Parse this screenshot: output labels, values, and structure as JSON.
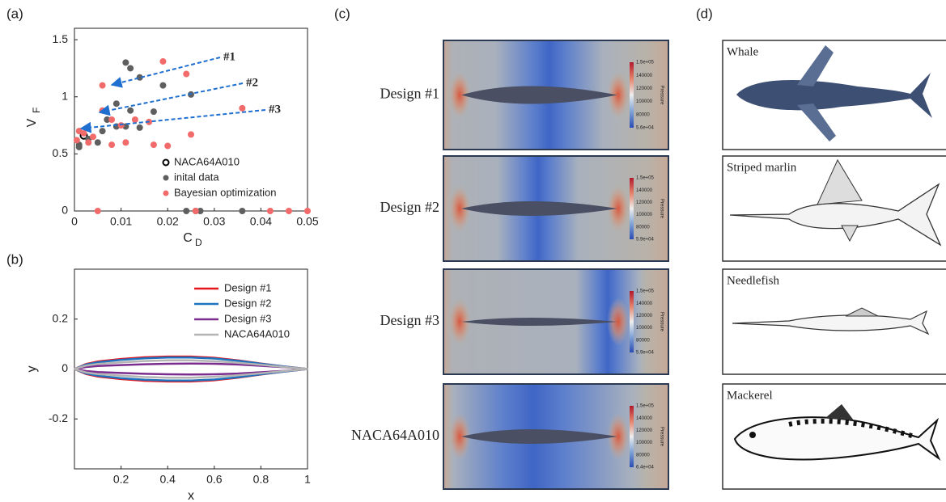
{
  "panel_labels": [
    "(a)",
    "(b)",
    "(c)",
    "(d)"
  ],
  "chart_data": [
    {
      "type": "scatter",
      "xlabel": "C",
      "xlabel_sub": "D",
      "ylabel": "V",
      "ylabel_sub": "F",
      "xlim": [
        0,
        0.05
      ],
      "ylim": [
        0,
        1.6
      ],
      "xticks": [
        0,
        0.01,
        0.02,
        0.03,
        0.04,
        0.05
      ],
      "yticks": [
        0,
        0.5,
        1,
        1.5
      ],
      "annotations": [
        "#1",
        "#2",
        "#3"
      ],
      "series": [
        {
          "name": "NACA64A010",
          "color": "#000000",
          "marker": "open",
          "x": [
            0.002
          ],
          "values": [
            0.66
          ]
        },
        {
          "name": "inital data",
          "color": "#5f5f5f",
          "marker": "filled",
          "x": [
            0.011,
            0.012,
            0.014,
            0.019,
            0.025,
            0.009,
            0.012,
            0.017,
            0.007,
            0.009,
            0.011,
            0.014,
            0.005,
            0.003,
            0.001,
            0.006,
            0.001,
            0.024,
            0.026,
            0.027,
            0.036
          ],
          "values": [
            1.3,
            1.25,
            1.17,
            1.1,
            1.02,
            0.94,
            0.88,
            0.87,
            0.8,
            0.74,
            0.74,
            0.73,
            0.6,
            0.63,
            0.58,
            0.7,
            0.56,
            0,
            0,
            0,
            0
          ]
        },
        {
          "name": "Bayesian optimization",
          "color": "#f26b6b",
          "marker": "filled",
          "x": [
            0.019,
            0.006,
            0.024,
            0.036,
            0.006,
            0.008,
            0.01,
            0.013,
            0.016,
            0.011,
            0.017,
            0.02,
            0.025,
            0.001,
            0.002,
            0.003,
            0.004,
            0.0005,
            0.008,
            0.005,
            0.026,
            0.042,
            0.046,
            0.05
          ],
          "values": [
            1.31,
            1.1,
            1.2,
            0.9,
            0.88,
            0.8,
            0.75,
            0.8,
            0.78,
            0.6,
            0.58,
            0.57,
            0.67,
            0.7,
            0.68,
            0.6,
            0.65,
            0.62,
            0.58,
            0,
            0,
            0,
            0,
            0
          ]
        }
      ]
    },
    {
      "type": "line",
      "xlabel": "x",
      "ylabel": "y",
      "xlim": [
        0,
        1
      ],
      "ylim": [
        -0.4,
        0.4
      ],
      "xticks": [
        0.2,
        0.4,
        0.6,
        0.8,
        1
      ],
      "yticks": [
        -0.2,
        0,
        0.2
      ],
      "x": [
        0,
        0.05,
        0.1,
        0.2,
        0.3,
        0.4,
        0.5,
        0.6,
        0.7,
        0.8,
        0.9,
        1,
        0.9,
        0.8,
        0.7,
        0.6,
        0.5,
        0.4,
        0.3,
        0.2,
        0.1,
        0.05,
        0
      ],
      "series": [
        {
          "name": "Design #1",
          "color": "#e8141c",
          "values": [
            0,
            0.02,
            0.03,
            0.04,
            0.047,
            0.05,
            0.05,
            0.045,
            0.035,
            0.022,
            0.01,
            0,
            -0.01,
            -0.022,
            -0.035,
            -0.045,
            -0.05,
            -0.05,
            -0.047,
            -0.04,
            -0.03,
            -0.02,
            0
          ]
        },
        {
          "name": "Design #2",
          "color": "#1f72bd",
          "values": [
            0,
            0.018,
            0.027,
            0.037,
            0.043,
            0.046,
            0.046,
            0.042,
            0.033,
            0.021,
            0.01,
            0,
            -0.01,
            -0.021,
            -0.033,
            -0.042,
            -0.046,
            -0.046,
            -0.043,
            -0.037,
            -0.027,
            -0.018,
            0
          ]
        },
        {
          "name": "Design #3",
          "color": "#7b2d8e",
          "values": [
            0,
            0.008,
            0.012,
            0.016,
            0.019,
            0.021,
            0.022,
            0.021,
            0.018,
            0.013,
            0.007,
            0,
            -0.007,
            -0.013,
            -0.018,
            -0.021,
            -0.022,
            -0.021,
            -0.019,
            -0.016,
            -0.012,
            -0.008,
            0
          ]
        },
        {
          "name": "NACA64A010",
          "color": "#b4b4b4",
          "values": [
            0,
            0.014,
            0.02,
            0.027,
            0.032,
            0.035,
            0.035,
            0.031,
            0.025,
            0.017,
            0.008,
            0,
            -0.008,
            -0.017,
            -0.025,
            -0.031,
            -0.035,
            -0.035,
            -0.032,
            -0.027,
            -0.02,
            -0.014,
            0
          ]
        }
      ]
    }
  ],
  "panel_c": {
    "colorbar_title": "Pressure",
    "designs": [
      {
        "name": "Design #1",
        "colorbar": [
          "1.5e+05",
          "140000",
          "120000",
          "100000",
          "80000",
          "5.6e+04"
        ]
      },
      {
        "name": "Design #2",
        "colorbar": [
          "1.5e+05",
          "140000",
          "120000",
          "100000",
          "80000",
          "5.9e+04"
        ]
      },
      {
        "name": "Design #3",
        "colorbar": [
          "1.5e+05",
          "140000",
          "120000",
          "100000",
          "80000",
          "5.9e+04"
        ]
      },
      {
        "name": "NACA64A010",
        "colorbar": [
          "1.5e+05",
          "140000",
          "120000",
          "100000",
          "80000",
          "6.4e+04"
        ]
      }
    ]
  },
  "panel_d": {
    "animals": [
      "Whale",
      "Striped marlin",
      "Needlefish",
      "Mackerel"
    ]
  }
}
